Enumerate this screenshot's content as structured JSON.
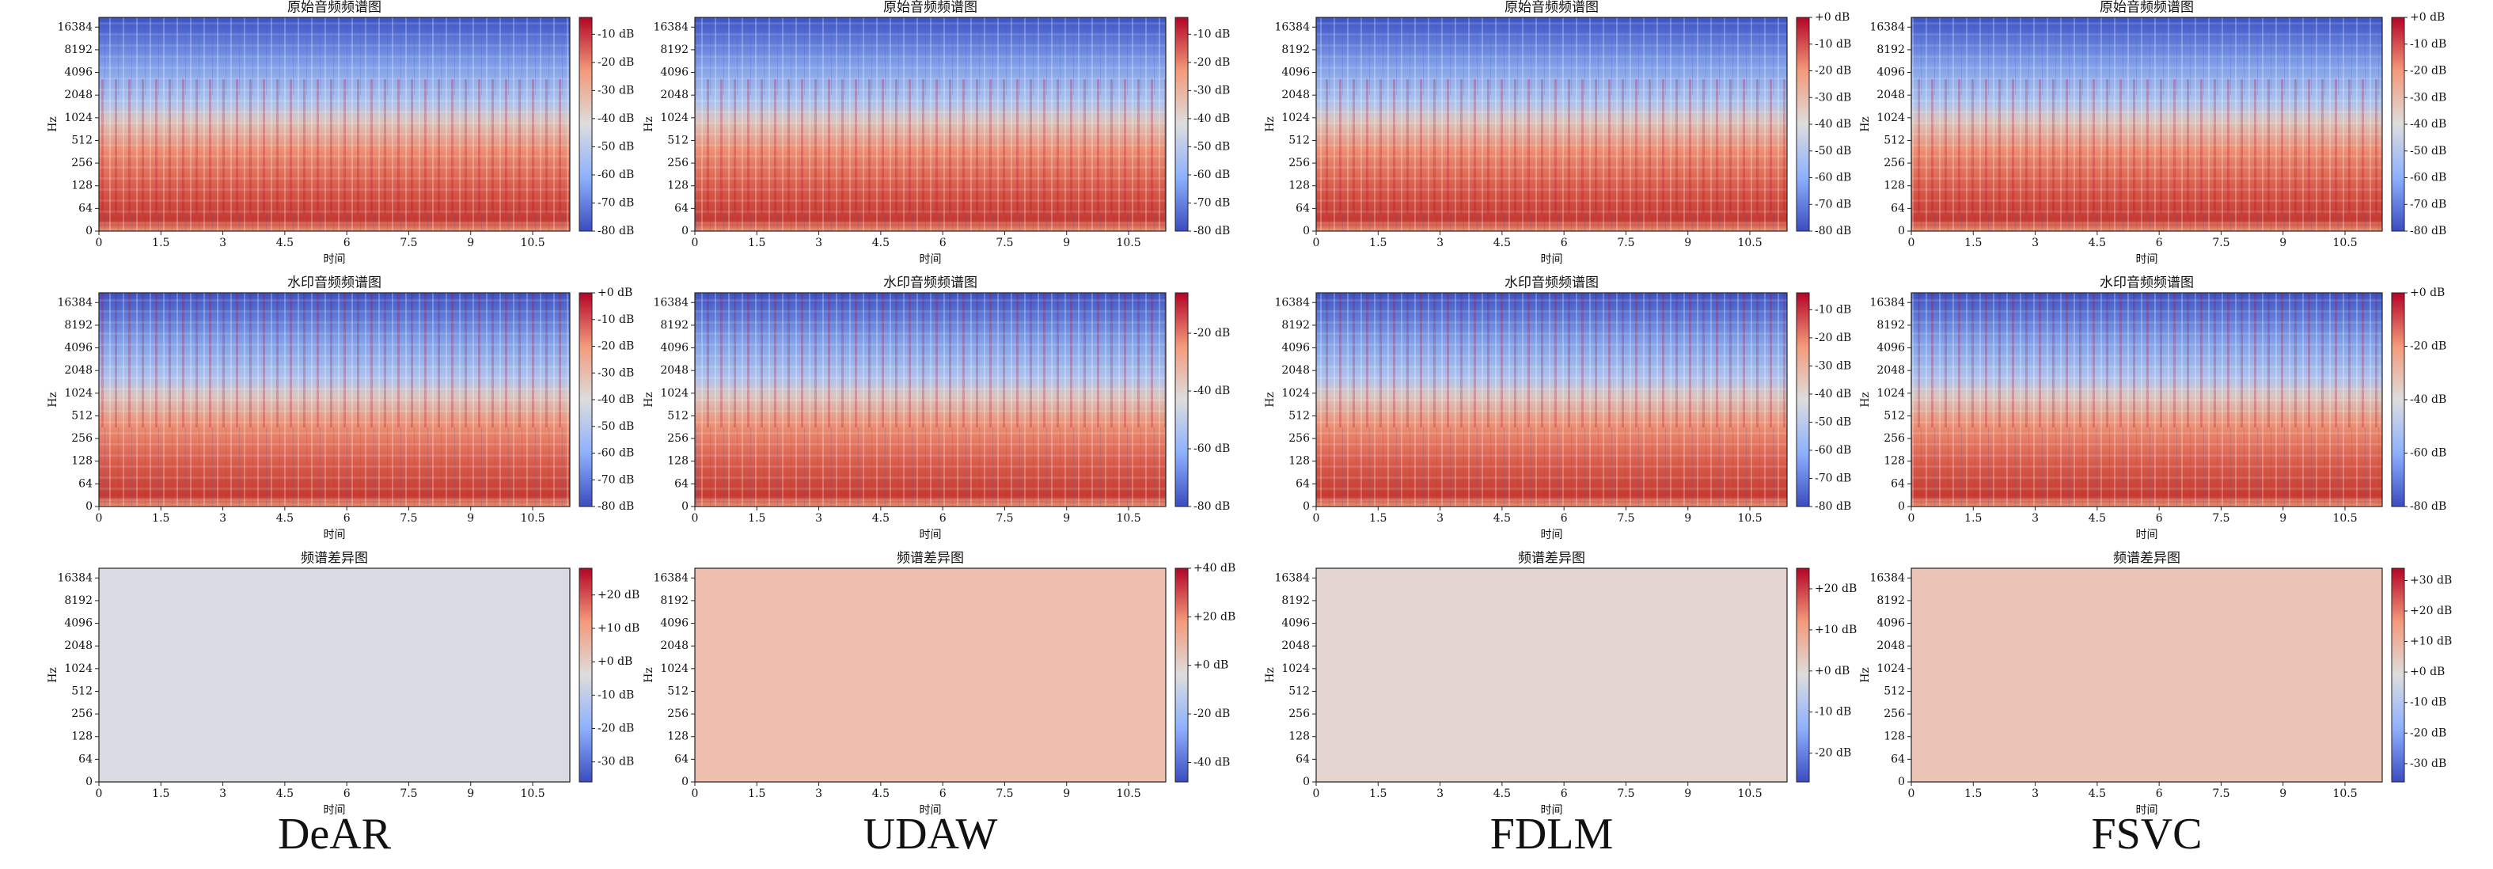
{
  "methods": [
    "DeAR",
    "UDAW",
    "FDLM",
    "FSVC"
  ],
  "chart_data": [
    {
      "type": "spectrogram",
      "title": "原始音频频谱图",
      "ylabel": "Hz",
      "xlabel": "时间",
      "colormap": "coolwarm",
      "yscale": "symlog",
      "xlim": [
        0,
        11.4
      ],
      "xticks": [
        0,
        1.5,
        3,
        4.5,
        6,
        7.5,
        9,
        10.5
      ],
      "ylim": [
        0,
        22050
      ],
      "yticks": [
        0,
        64,
        128,
        256,
        512,
        1024,
        2048,
        4096,
        8192,
        16384
      ],
      "clim": [
        -80,
        -4
      ],
      "cticks": [
        {
          "value": -10,
          "label": "-10 dB"
        },
        {
          "value": -20,
          "label": "-20 dB"
        },
        {
          "value": -30,
          "label": "-30 dB"
        },
        {
          "value": -40,
          "label": "-40 dB"
        },
        {
          "value": -50,
          "label": "-50 dB"
        },
        {
          "value": -60,
          "label": "-60 dB"
        },
        {
          "value": -70,
          "label": "-70 dB"
        },
        {
          "value": -80,
          "label": "-80 dB"
        }
      ]
    },
    {
      "type": "spectrogram",
      "title": "原始音频频谱图",
      "ylabel": "Hz",
      "xlabel": "时间",
      "colormap": "coolwarm",
      "yscale": "symlog",
      "xlim": [
        0,
        11.4
      ],
      "xticks": [
        0,
        1.5,
        3,
        4.5,
        6,
        7.5,
        9,
        10.5
      ],
      "ylim": [
        0,
        22050
      ],
      "yticks": [
        0,
        64,
        128,
        256,
        512,
        1024,
        2048,
        4096,
        8192,
        16384
      ],
      "clim": [
        -80,
        -4
      ],
      "cticks": [
        {
          "value": -10,
          "label": "-10 dB"
        },
        {
          "value": -20,
          "label": "-20 dB"
        },
        {
          "value": -30,
          "label": "-30 dB"
        },
        {
          "value": -40,
          "label": "-40 dB"
        },
        {
          "value": -50,
          "label": "-50 dB"
        },
        {
          "value": -60,
          "label": "-60 dB"
        },
        {
          "value": -70,
          "label": "-70 dB"
        },
        {
          "value": -80,
          "label": "-80 dB"
        }
      ]
    },
    {
      "type": "spectrogram",
      "title": "原始音频频谱图",
      "ylabel": "Hz",
      "xlabel": "时间",
      "colormap": "coolwarm",
      "yscale": "symlog",
      "xlim": [
        0,
        11.4
      ],
      "xticks": [
        0,
        1.5,
        3,
        4.5,
        6,
        7.5,
        9,
        10.5
      ],
      "ylim": [
        0,
        22050
      ],
      "yticks": [
        0,
        64,
        128,
        256,
        512,
        1024,
        2048,
        4096,
        8192,
        16384
      ],
      "clim": [
        -80,
        0
      ],
      "cticks": [
        {
          "value": 0,
          "label": "+0 dB"
        },
        {
          "value": -10,
          "label": "-10 dB"
        },
        {
          "value": -20,
          "label": "-20 dB"
        },
        {
          "value": -30,
          "label": "-30 dB"
        },
        {
          "value": -40,
          "label": "-40 dB"
        },
        {
          "value": -50,
          "label": "-50 dB"
        },
        {
          "value": -60,
          "label": "-60 dB"
        },
        {
          "value": -70,
          "label": "-70 dB"
        },
        {
          "value": -80,
          "label": "-80 dB"
        }
      ]
    },
    {
      "type": "spectrogram",
      "title": "原始音频频谱图",
      "ylabel": "Hz",
      "xlabel": "时间",
      "colormap": "coolwarm",
      "yscale": "symlog",
      "xlim": [
        0,
        11.4
      ],
      "xticks": [
        0,
        1.5,
        3,
        4.5,
        6,
        7.5,
        9,
        10.5
      ],
      "ylim": [
        0,
        22050
      ],
      "yticks": [
        0,
        64,
        128,
        256,
        512,
        1024,
        2048,
        4096,
        8192,
        16384
      ],
      "clim": [
        -80,
        0
      ],
      "cticks": [
        {
          "value": 0,
          "label": "+0 dB"
        },
        {
          "value": -10,
          "label": "-10 dB"
        },
        {
          "value": -20,
          "label": "-20 dB"
        },
        {
          "value": -30,
          "label": "-30 dB"
        },
        {
          "value": -40,
          "label": "-40 dB"
        },
        {
          "value": -50,
          "label": "-50 dB"
        },
        {
          "value": -60,
          "label": "-60 dB"
        },
        {
          "value": -70,
          "label": "-70 dB"
        },
        {
          "value": -80,
          "label": "-80 dB"
        }
      ]
    },
    {
      "type": "spectrogram",
      "title": "水印音频频谱图",
      "ylabel": "Hz",
      "xlabel": "时间",
      "colormap": "coolwarm",
      "yscale": "symlog",
      "xlim": [
        0,
        11.4
      ],
      "xticks": [
        0,
        1.5,
        3,
        4.5,
        6,
        7.5,
        9,
        10.5
      ],
      "ylim": [
        0,
        22050
      ],
      "yticks": [
        0,
        64,
        128,
        256,
        512,
        1024,
        2048,
        4096,
        8192,
        16384
      ],
      "clim": [
        -80,
        0
      ],
      "cticks": [
        {
          "value": 0,
          "label": "+0 dB"
        },
        {
          "value": -10,
          "label": "-10 dB"
        },
        {
          "value": -20,
          "label": "-20 dB"
        },
        {
          "value": -30,
          "label": "-30 dB"
        },
        {
          "value": -40,
          "label": "-40 dB"
        },
        {
          "value": -50,
          "label": "-50 dB"
        },
        {
          "value": -60,
          "label": "-60 dB"
        },
        {
          "value": -70,
          "label": "-70 dB"
        },
        {
          "value": -80,
          "label": "-80 dB"
        }
      ]
    },
    {
      "type": "spectrogram",
      "title": "水印音频频谱图",
      "ylabel": "Hz",
      "xlabel": "时间",
      "colormap": "coolwarm",
      "yscale": "symlog",
      "xlim": [
        0,
        11.4
      ],
      "xticks": [
        0,
        1.5,
        3,
        4.5,
        6,
        7.5,
        9,
        10.5
      ],
      "ylim": [
        0,
        22050
      ],
      "yticks": [
        0,
        64,
        128,
        256,
        512,
        1024,
        2048,
        4096,
        8192,
        16384
      ],
      "clim": [
        -80,
        -6
      ],
      "cticks": [
        {
          "value": -20,
          "label": "-20 dB"
        },
        {
          "value": -40,
          "label": "-40 dB"
        },
        {
          "value": -60,
          "label": "-60 dB"
        },
        {
          "value": -80,
          "label": "-80 dB"
        }
      ]
    },
    {
      "type": "spectrogram",
      "title": "水印音频频谱图",
      "ylabel": "Hz",
      "xlabel": "时间",
      "colormap": "coolwarm",
      "yscale": "symlog",
      "xlim": [
        0,
        11.4
      ],
      "xticks": [
        0,
        1.5,
        3,
        4.5,
        6,
        7.5,
        9,
        10.5
      ],
      "ylim": [
        0,
        22050
      ],
      "yticks": [
        0,
        64,
        128,
        256,
        512,
        1024,
        2048,
        4096,
        8192,
        16384
      ],
      "clim": [
        -80,
        -4
      ],
      "cticks": [
        {
          "value": -10,
          "label": "-10 dB"
        },
        {
          "value": -20,
          "label": "-20 dB"
        },
        {
          "value": -30,
          "label": "-30 dB"
        },
        {
          "value": -40,
          "label": "-40 dB"
        },
        {
          "value": -50,
          "label": "-50 dB"
        },
        {
          "value": -60,
          "label": "-60 dB"
        },
        {
          "value": -70,
          "label": "-70 dB"
        },
        {
          "value": -80,
          "label": "-80 dB"
        }
      ]
    },
    {
      "type": "spectrogram",
      "title": "水印音频频谱图",
      "ylabel": "Hz",
      "xlabel": "时间",
      "colormap": "coolwarm",
      "yscale": "symlog",
      "xlim": [
        0,
        11.4
      ],
      "xticks": [
        0,
        1.5,
        3,
        4.5,
        6,
        7.5,
        9,
        10.5
      ],
      "ylim": [
        0,
        22050
      ],
      "yticks": [
        0,
        64,
        128,
        256,
        512,
        1024,
        2048,
        4096,
        8192,
        16384
      ],
      "clim": [
        -80,
        0
      ],
      "cticks": [
        {
          "value": 0,
          "label": "+0 dB"
        },
        {
          "value": -20,
          "label": "-20 dB"
        },
        {
          "value": -40,
          "label": "-40 dB"
        },
        {
          "value": -60,
          "label": "-60 dB"
        },
        {
          "value": -80,
          "label": "-80 dB"
        }
      ]
    },
    {
      "type": "spectrogram",
      "title": "频谱差异图",
      "ylabel": "Hz",
      "xlabel": "时间",
      "colormap": "coolwarm",
      "color": "#d9dbe2",
      "yscale": "symlog",
      "xlim": [
        0,
        11.4
      ],
      "xticks": [
        0,
        1.5,
        3,
        4.5,
        6,
        7.5,
        9,
        10.5
      ],
      "ylim": [
        0,
        22050
      ],
      "yticks": [
        0,
        64,
        128,
        256,
        512,
        1024,
        2048,
        4096,
        8192,
        16384
      ],
      "clim": [
        -36,
        28
      ],
      "cticks": [
        {
          "value": 20,
          "label": "+20 dB"
        },
        {
          "value": 10,
          "label": "+10 dB"
        },
        {
          "value": 0,
          "label": "+0 dB"
        },
        {
          "value": -10,
          "label": "-10 dB"
        },
        {
          "value": -20,
          "label": "-20 dB"
        },
        {
          "value": -30,
          "label": "-30 dB"
        }
      ]
    },
    {
      "type": "spectrogram",
      "title": "频谱差异图",
      "ylabel": "Hz",
      "xlabel": "时间",
      "colormap": "coolwarm",
      "color": "#efbfae",
      "yscale": "symlog",
      "xlim": [
        0,
        11.4
      ],
      "xticks": [
        0,
        1.5,
        3,
        4.5,
        6,
        7.5,
        9,
        10.5
      ],
      "ylim": [
        0,
        22050
      ],
      "yticks": [
        0,
        64,
        128,
        256,
        512,
        1024,
        2048,
        4096,
        8192,
        16384
      ],
      "clim": [
        -48,
        40
      ],
      "cticks": [
        {
          "value": 40,
          "label": "+40 dB"
        },
        {
          "value": 20,
          "label": "+20 dB"
        },
        {
          "value": 0,
          "label": "+0 dB"
        },
        {
          "value": -20,
          "label": "-20 dB"
        },
        {
          "value": -40,
          "label": "-40 dB"
        }
      ]
    },
    {
      "type": "spectrogram",
      "title": "频谱差异图",
      "ylabel": "Hz",
      "xlabel": "时间",
      "colormap": "coolwarm",
      "color": "#e3d4d0",
      "yscale": "symlog",
      "xlim": [
        0,
        11.4
      ],
      "xticks": [
        0,
        1.5,
        3,
        4.5,
        6,
        7.5,
        9,
        10.5
      ],
      "ylim": [
        0,
        22050
      ],
      "yticks": [
        0,
        64,
        128,
        256,
        512,
        1024,
        2048,
        4096,
        8192,
        16384
      ],
      "clim": [
        -27,
        25
      ],
      "cticks": [
        {
          "value": 20,
          "label": "+20 dB"
        },
        {
          "value": 10,
          "label": "+10 dB"
        },
        {
          "value": 0,
          "label": "+0 dB"
        },
        {
          "value": -10,
          "label": "-10 dB"
        },
        {
          "value": -20,
          "label": "-20 dB"
        }
      ]
    },
    {
      "type": "spectrogram",
      "title": "频谱差异图",
      "ylabel": "Hz",
      "xlabel": "时间",
      "colormap": "coolwarm",
      "color": "#ecc4b6",
      "yscale": "symlog",
      "xlim": [
        0,
        11.4
      ],
      "xticks": [
        0,
        1.5,
        3,
        4.5,
        6,
        7.5,
        9,
        10.5
      ],
      "ylim": [
        0,
        22050
      ],
      "yticks": [
        0,
        64,
        128,
        256,
        512,
        1024,
        2048,
        4096,
        8192,
        16384
      ],
      "clim": [
        -36,
        34
      ],
      "cticks": [
        {
          "value": 30,
          "label": "+30 dB"
        },
        {
          "value": 20,
          "label": "+20 dB"
        },
        {
          "value": 10,
          "label": "+10 dB"
        },
        {
          "value": 0,
          "label": "+0 dB"
        },
        {
          "value": -10,
          "label": "-10 dB"
        },
        {
          "value": -20,
          "label": "-20 dB"
        },
        {
          "value": -30,
          "label": "-30 dB"
        }
      ]
    }
  ]
}
